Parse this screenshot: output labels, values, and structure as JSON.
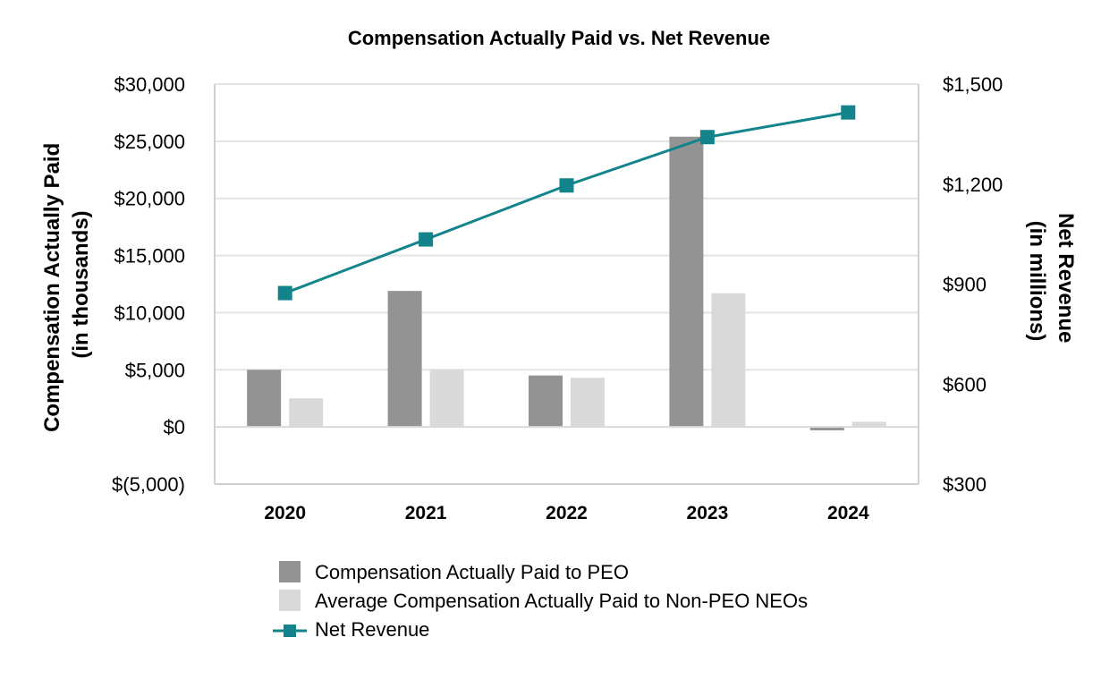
{
  "chart_data": {
    "type": "bar",
    "title": "Compensation Actually Paid vs. Net Revenue",
    "categories": [
      "2020",
      "2021",
      "2022",
      "2023",
      "2024"
    ],
    "y_left": {
      "label_line1": "Compensation Actually Paid",
      "label_line2": "(in thousands)",
      "ylim": [
        -5000,
        30000
      ],
      "ticks": [
        -5000,
        0,
        5000,
        10000,
        15000,
        20000,
        25000,
        30000
      ],
      "tick_labels": [
        "$(5,000)",
        "$0",
        "$5,000",
        "$10,000",
        "$15,000",
        "$20,000",
        "$25,000",
        "$30,000"
      ]
    },
    "y_right": {
      "label_line1": "Net Revenue",
      "label_line2": "(in millions)",
      "ylim": [
        300,
        1500
      ],
      "ticks": [
        300,
        600,
        900,
        1200,
        1500
      ],
      "tick_labels": [
        "$300",
        "$600",
        "$900",
        "$1,200",
        "$1,500"
      ]
    },
    "series": [
      {
        "name": "Compensation Actually Paid to PEO",
        "type": "bar",
        "axis": "left",
        "color": "#939393",
        "values": [
          5000,
          11900,
          4500,
          25400,
          -300
        ]
      },
      {
        "name": "Average Compensation Actually Paid to Non-PEO NEOs",
        "type": "bar",
        "axis": "left",
        "color": "#d9d9d9",
        "values": [
          2500,
          5000,
          4300,
          11700,
          450
        ]
      },
      {
        "name": "Net Revenue",
        "type": "line",
        "axis": "right",
        "color": "#13848b",
        "values": [
          873,
          1034,
          1196,
          1341,
          1415
        ]
      }
    ],
    "grid": true,
    "legend_position": "bottom"
  }
}
